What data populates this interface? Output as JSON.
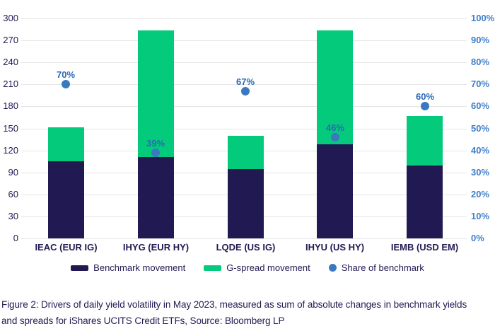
{
  "figure": {
    "caption_full": "Figure 2: Drivers of daily yield volatility in May 2023, measured as sum of absolute changes in benchmark yields and spreads for iShares UCITS Credit ETFs, Source: Bloomberg LP",
    "caption_line1": "Figure 2: Drivers of daily yield volatility in May 2023, measured as sum of absolute changes in benchmark yields",
    "caption_line2": "and spreads for iShares UCITS Credit ETFs, Source: Bloomberg LP"
  },
  "chart_data": {
    "type": "bar",
    "subtype": "stacked-bars-with-share-dots",
    "title": "",
    "categories": [
      "IEAC (EUR IG)",
      "IHYG (EUR HY)",
      "LQDE (US IG)",
      "IHYU (US HY)",
      "IEMB (USD EM)"
    ],
    "series": [
      {
        "name": "Benchmark movement",
        "type": "bar",
        "stack": "volatility",
        "axis": "left",
        "color": "#211a52",
        "values": [
          105,
          111,
          95,
          128,
          99
        ]
      },
      {
        "name": "G-spread movement",
        "type": "bar",
        "stack": "volatility",
        "axis": "left",
        "color": "#04cb7c",
        "values": [
          46,
          173,
          45,
          156,
          68
        ]
      },
      {
        "name": "Share of benchmark",
        "type": "scatter",
        "axis": "right",
        "color": "#3a79c0",
        "values": [
          70,
          39,
          67,
          46,
          60
        ],
        "point_labels": [
          "70%",
          "39%",
          "67%",
          "46%",
          "60%"
        ]
      }
    ],
    "stacked_totals": [
      151,
      284,
      140,
      284,
      167
    ],
    "left_axis": {
      "min": 0,
      "max": 300,
      "step": 30,
      "ticks": [
        "0",
        "30",
        "60",
        "90",
        "120",
        "150",
        "180",
        "210",
        "240",
        "270",
        "300"
      ]
    },
    "right_axis": {
      "min": 0,
      "max": 100,
      "step": 10,
      "unit": "%",
      "ticks": [
        "0%",
        "10%",
        "20%",
        "30%",
        "40%",
        "50%",
        "60%",
        "70%",
        "80%",
        "90%",
        "100%"
      ]
    },
    "grid": true,
    "legend_position": "bottom",
    "colors": {
      "benchmark_bar": "#211a52",
      "gspread_bar": "#04cb7c",
      "share_dot": "#3a79c0",
      "point_label_text": "#2b69b4",
      "left_axis_text": "#211a52",
      "right_axis_text": "#3f7ec9",
      "category_text": "#211a52",
      "gridline": "#e6e6e6",
      "caption_text": "#211a52"
    }
  }
}
